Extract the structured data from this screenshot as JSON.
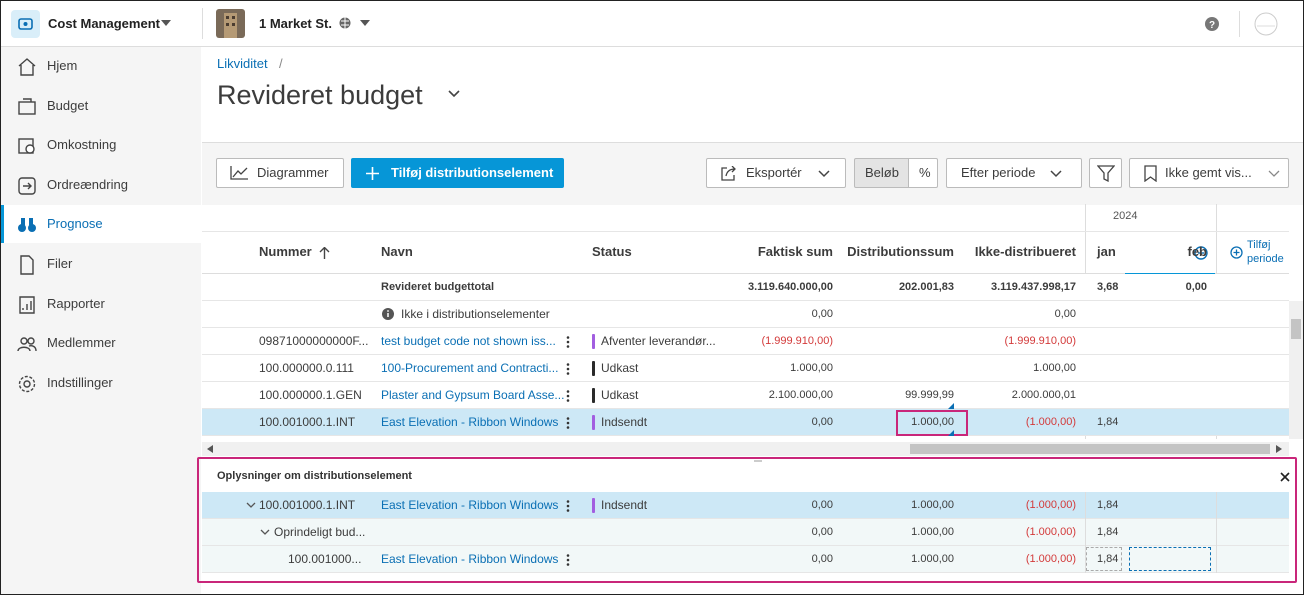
{
  "app": {
    "product": "Cost Management",
    "project": "1 Market St."
  },
  "nav": [
    "Hjem",
    "Budget",
    "Omkostning",
    "Ordreændring",
    "Prognose",
    "Filer",
    "Rapporter",
    "Medlemmer",
    "Indstillinger"
  ],
  "breadcrumb": "Likviditet",
  "breadcrumb_separator": "/",
  "title": "Revideret budget",
  "toolbar": {
    "chart": "Diagrammer",
    "add": "Tilføj distributionselement",
    "export": "Eksportér",
    "amount": "Beløb",
    "percent": "%",
    "period": "Efter periode",
    "view": "Ikke gemt vis..."
  },
  "table": {
    "year": "2024",
    "columns": {
      "number": "Nummer",
      "name": "Navn",
      "status": "Status",
      "actual": "Faktisk sum",
      "distribution": "Distributionssum",
      "undistributed": "Ikke-distribueret",
      "jan": "jan",
      "feb": "feb"
    },
    "add_period": "Tilføj periode",
    "rows": [
      {
        "number": null,
        "name": "Revideret budgettotal",
        "status": null,
        "actual": "3.119.640.000,00",
        "distribution": "202.001,83",
        "undistributed": "3.119.437.998,17",
        "jan": "3,68",
        "feb": "0,00"
      },
      {
        "number": null,
        "name": "Ikke i distributionselementer",
        "status": null,
        "actual": "0,00",
        "distribution": null,
        "undistributed": "0,00",
        "jan": null,
        "feb": null
      },
      {
        "number": "09871000000000F...",
        "name": "test budget code not shown iss...",
        "status": "Afventer leverandør...",
        "status_color": "#a25ee0",
        "actual": "(1.999.910,00)",
        "distribution": null,
        "undistributed": "(1.999.910,00)",
        "jan": null,
        "feb": null
      },
      {
        "number": "100.000000.0.111",
        "name": "100-Procurement and Contracti...",
        "status": "Udkast",
        "status_color": "#2a2a2a",
        "actual": "1.000,00",
        "distribution": null,
        "undistributed": "1.000,00",
        "jan": null,
        "feb": null
      },
      {
        "number": "100.000000.1.GEN",
        "name": "Plaster and Gypsum Board Asse...",
        "status": "Udkast",
        "status_color": "#2a2a2a",
        "actual": "2.100.000,00",
        "distribution": "99.999,99",
        "undistributed": "2.000.000,01",
        "jan": null,
        "feb": null
      },
      {
        "number": "100.001000.1.INT",
        "name": "East Elevation - Ribbon Windows",
        "status": "Indsendt",
        "status_color": "#a25ee0",
        "actual": "0,00",
        "distribution": "1.000,00",
        "undistributed": "(1.000,00)",
        "jan": "1,84",
        "feb": null
      }
    ]
  },
  "details": {
    "title": "Oplysninger om distributionselement",
    "rows": [
      {
        "number": "100.001000.1.INT",
        "name": "East Elevation - Ribbon Windows",
        "status": "Indsendt",
        "status_color": "#a25ee0",
        "actual": "0,00",
        "distribution": "1.000,00",
        "undistributed": "(1.000,00)",
        "jan": "1,84",
        "feb": null
      },
      {
        "number": "Oprindeligt bud...",
        "name": null,
        "status": null,
        "actual": "0,00",
        "distribution": "1.000,00",
        "undistributed": "(1.000,00)",
        "jan": "1,84",
        "feb": null
      },
      {
        "number": "100.001000...",
        "name": "East Elevation - Ribbon Windows",
        "status": null,
        "actual": "0,00",
        "distribution": "1.000,00",
        "undistributed": "(1.000,00)",
        "jan": "1,84",
        "feb": null
      }
    ]
  }
}
